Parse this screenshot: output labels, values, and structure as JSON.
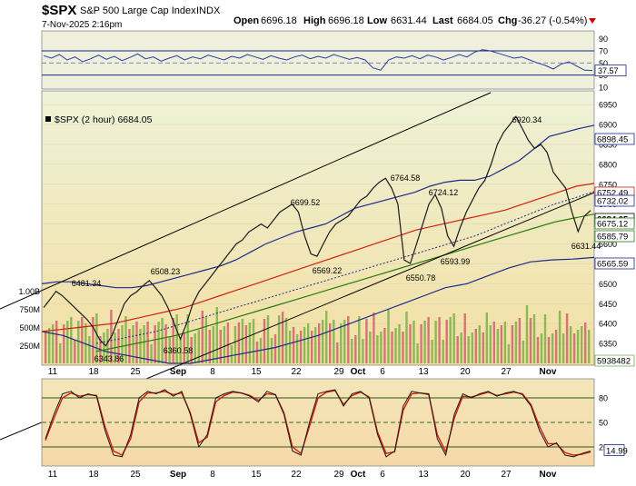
{
  "header": {
    "symbol": "$SPX",
    "name": "S&P 500 Large Cap Index",
    "exchange": "INDX",
    "datetime": "7-Nov-2025 2:16pm",
    "open_label": "Open",
    "open": "6696.18",
    "high_label": "High",
    "high": "6696.18",
    "low_label": "Low",
    "low": "6631.44",
    "last_label": "Last",
    "last": "6684.05",
    "chg_label": "Chg",
    "chg": "-36.27 (-0.54%)"
  },
  "colors": {
    "price_line": "#1a1a1a",
    "upper_band": "#1a2a8a",
    "lower_band": "#1a2a8a",
    "ma_red": "#d02010",
    "ma_green": "#2a7a10",
    "ma_dotted": "#1a2a8a",
    "vol_up": "#7ab04a",
    "vol_down": "#d06070",
    "rsi_line": "#2a3aa0",
    "stoch_fast": "#1a1a1a",
    "stoch_slow": "#d02010",
    "panel_bg_top": "#eaeecf",
    "panel_bg_bottom": "#f2dfa4",
    "label_box_blue": "#1a2a8a",
    "chg_arrow": "#cc0000"
  },
  "chart_data": [
    {
      "type": "line",
      "panel": "RSI",
      "yticks": [
        10,
        30,
        50,
        70,
        90
      ],
      "ylim": [
        10,
        100
      ],
      "reference_lines": [
        30,
        50,
        70
      ],
      "last_value_label": "37.57",
      "series": [
        {
          "values": [
            62,
            58,
            64,
            55,
            60,
            52,
            57,
            63,
            56,
            61,
            54,
            59,
            65,
            57,
            60,
            53,
            58,
            62,
            55,
            60,
            57,
            63,
            59,
            55,
            61,
            58,
            64,
            60,
            56,
            62,
            58,
            55,
            60,
            63,
            57,
            61,
            58,
            64,
            60,
            56,
            59,
            55,
            42,
            38,
            55,
            60,
            58,
            62,
            57,
            63,
            60,
            55,
            59,
            64,
            60,
            68,
            72,
            70,
            66,
            62,
            58,
            60,
            55,
            50,
            46,
            40,
            48,
            52,
            45,
            38,
            37.57
          ]
        }
      ]
    },
    {
      "type": "line",
      "panel": "Price",
      "legend": "$SPX (2 hour) 6684.05",
      "ylim": [
        6300,
        6980
      ],
      "yticks": [
        6350,
        6400,
        6450,
        6500,
        6550,
        6600,
        6650,
        6700,
        6750,
        6800,
        6850,
        6900,
        6950
      ],
      "volume_ticks": [
        "250M",
        "500M",
        "750M",
        "1.00B"
      ],
      "x_tick_labels": [
        "11",
        "18",
        "25",
        "Sep",
        "8",
        "15",
        "22",
        "29",
        "Oct",
        "6",
        "13",
        "20",
        "27",
        "Nov"
      ],
      "annotations": [
        "6481.34",
        "6343.86",
        "6508.23",
        "6360.58",
        "6699.52",
        "6569.22",
        "6764.58",
        "6550.78",
        "6724.12",
        "6593.99",
        "6920.34",
        "6631.44"
      ],
      "right_labels": [
        "6898.45",
        "6752.49",
        "6732.02",
        "6684.05",
        "6675.12",
        "6585.79",
        "6565.59",
        "5938482"
      ],
      "price": [
        6440,
        6460,
        6481,
        6470,
        6455,
        6440,
        6425,
        6410,
        6390,
        6360,
        6344,
        6370,
        6410,
        6450,
        6470,
        6480,
        6495,
        6508,
        6490,
        6470,
        6440,
        6400,
        6361,
        6400,
        6450,
        6480,
        6500,
        6520,
        6540,
        6560,
        6580,
        6600,
        6610,
        6630,
        6640,
        6650,
        6640,
        6660,
        6680,
        6690,
        6700,
        6680,
        6620,
        6575,
        6569,
        6600,
        6630,
        6650,
        6660,
        6670,
        6690,
        6710,
        6720,
        6740,
        6755,
        6765,
        6740,
        6700,
        6560,
        6551,
        6600,
        6650,
        6700,
        6724,
        6690,
        6620,
        6594,
        6640,
        6680,
        6710,
        6740,
        6760,
        6800,
        6850,
        6880,
        6900,
        6920,
        6890,
        6860,
        6840,
        6850,
        6830,
        6780,
        6760,
        6740,
        6680,
        6631,
        6670,
        6684.05
      ],
      "upper_band": [
        6500,
        6505,
        6505,
        6500,
        6495,
        6490,
        6490,
        6495,
        6505,
        6515,
        6525,
        6535,
        6545,
        6560,
        6580,
        6600,
        6615,
        6630,
        6640,
        6650,
        6670,
        6690,
        6700,
        6710,
        6720,
        6730,
        6745,
        6755,
        6760,
        6760,
        6770,
        6790,
        6810,
        6840,
        6870,
        6880,
        6890,
        6898
      ],
      "ma_red": [
        6380,
        6385,
        6390,
        6395,
        6400,
        6410,
        6420,
        6430,
        6440,
        6455,
        6470,
        6485,
        6500,
        6515,
        6530,
        6545,
        6560,
        6575,
        6590,
        6605,
        6620,
        6635,
        6645,
        6655,
        6665,
        6675,
        6685,
        6700,
        6715,
        6730,
        6745,
        6752
      ],
      "ma_dotted": [
        6350,
        6360,
        6370,
        6380,
        6395,
        6410,
        6425,
        6440,
        6455,
        6470,
        6485,
        6500,
        6515,
        6530,
        6545,
        6560,
        6575,
        6590,
        6605,
        6620,
        6640,
        6660,
        6680,
        6700,
        6715,
        6732
      ],
      "ma_green": [
        6330,
        6340,
        6350,
        6360,
        6370,
        6385,
        6400,
        6415,
        6430,
        6445,
        6460,
        6475,
        6490,
        6505,
        6520,
        6535,
        6550,
        6565,
        6580,
        6595,
        6610,
        6625,
        6640,
        6655,
        6665,
        6675
      ],
      "lower_band": [
        6380,
        6370,
        6350,
        6330,
        6320,
        6310,
        6300,
        6300,
        6310,
        6320,
        6330,
        6340,
        6355,
        6370,
        6390,
        6410,
        6430,
        6450,
        6470,
        6490,
        6500,
        6520,
        6540,
        6555,
        6560,
        6562,
        6566
      ]
    },
    {
      "type": "line",
      "panel": "Stochastic",
      "yticks": [
        20,
        50,
        80
      ],
      "ylim": [
        0,
        100
      ],
      "reference_lines": [
        20,
        50,
        80
      ],
      "last_value_label": "14.99",
      "series": [
        {
          "values": [
            30,
            60,
            85,
            88,
            80,
            85,
            82,
            40,
            10,
            8,
            35,
            80,
            88,
            85,
            90,
            82,
            88,
            60,
            20,
            35,
            80,
            85,
            88,
            86,
            82,
            75,
            88,
            84,
            60,
            15,
            10,
            50,
            85,
            88,
            90,
            70,
            85,
            88,
            80,
            35,
            8,
            15,
            70,
            88,
            86,
            85,
            30,
            10,
            60,
            85,
            80,
            85,
            88,
            82,
            86,
            88,
            84,
            70,
            40,
            20,
            25,
            10,
            8,
            12,
            15
          ]
        },
        {
          "values": [
            28,
            55,
            80,
            86,
            82,
            84,
            83,
            45,
            15,
            10,
            30,
            75,
            86,
            86,
            88,
            84,
            86,
            62,
            25,
            32,
            75,
            83,
            87,
            86,
            83,
            77,
            85,
            84,
            62,
            20,
            12,
            45,
            80,
            87,
            89,
            72,
            83,
            87,
            81,
            38,
            12,
            14,
            65,
            85,
            86,
            84,
            35,
            14,
            55,
            82,
            81,
            84,
            87,
            83,
            85,
            87,
            85,
            72,
            45,
            24,
            24,
            13,
            10,
            11,
            14
          ]
        }
      ]
    }
  ]
}
